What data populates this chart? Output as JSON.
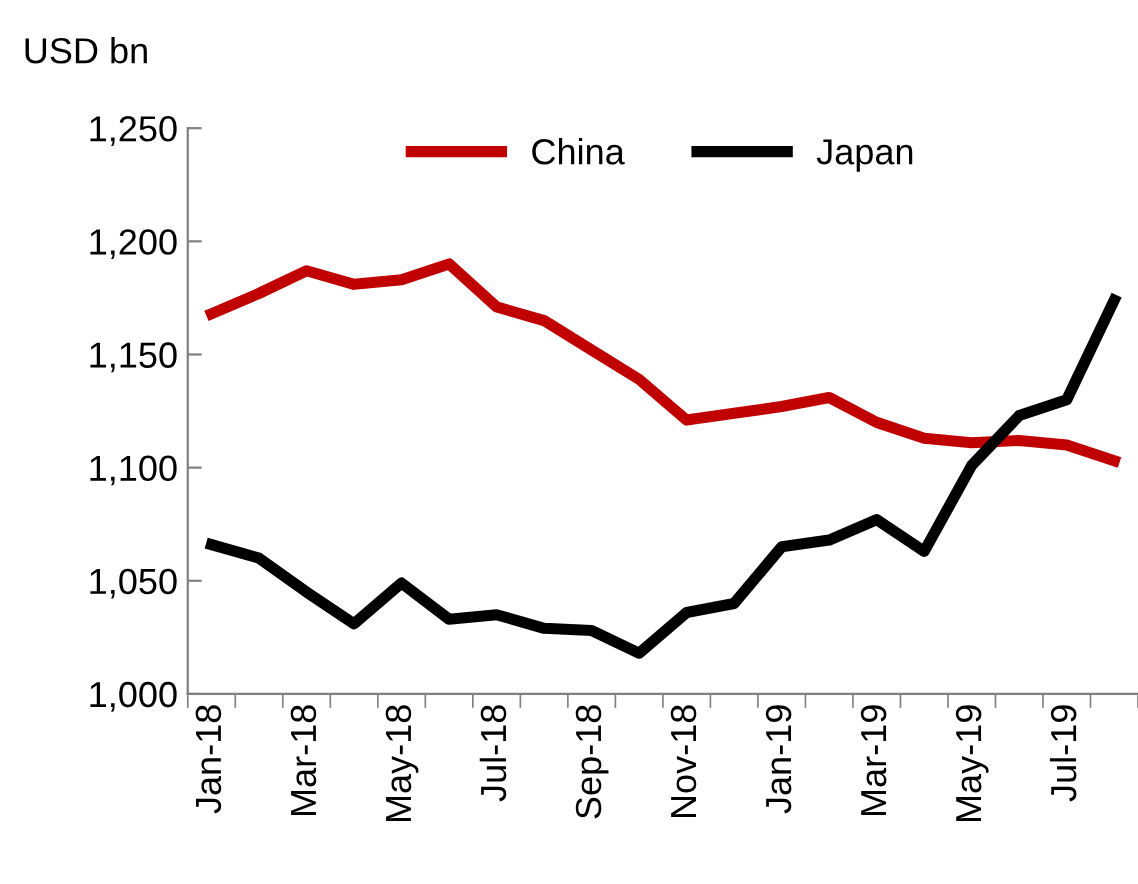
{
  "chart_data": {
    "type": "line",
    "ylabel": "USD bn",
    "categories": [
      "Jan-18",
      null,
      "Mar-18",
      null,
      "May-18",
      null,
      "Jul-18",
      null,
      "Sep-18",
      null,
      "Nov-18",
      null,
      "Jan-19",
      null,
      "Mar-19",
      null,
      "May-19",
      null,
      "Jul-19",
      null
    ],
    "series": [
      {
        "name": "China",
        "color": "#c00000",
        "values": [
          1168,
          1177,
          1187,
          1181,
          1183,
          1190,
          1171,
          1165,
          1152,
          1139,
          1121,
          1124,
          1127,
          1131,
          1120,
          1113,
          1111,
          1112,
          1110,
          1103
        ]
      },
      {
        "name": "Japan",
        "color": "#000000",
        "values": [
          1066,
          1060,
          1045,
          1031,
          1049,
          1033,
          1035,
          1029,
          1028,
          1018,
          1036,
          1040,
          1065,
          1068,
          1077,
          1063,
          1101,
          1123,
          1130,
          1174
        ]
      }
    ],
    "ylim": [
      1000,
      1250
    ],
    "yticks": [
      {
        "value": 1000,
        "label": "1,000"
      },
      {
        "value": 1050,
        "label": "1,050"
      },
      {
        "value": 1100,
        "label": "1,100"
      },
      {
        "value": 1150,
        "label": "1,150"
      },
      {
        "value": 1200,
        "label": "1,200"
      },
      {
        "value": 1250,
        "label": "1,250"
      }
    ],
    "grid": false,
    "legend": "top",
    "marker": "none",
    "line_style": "solid"
  }
}
